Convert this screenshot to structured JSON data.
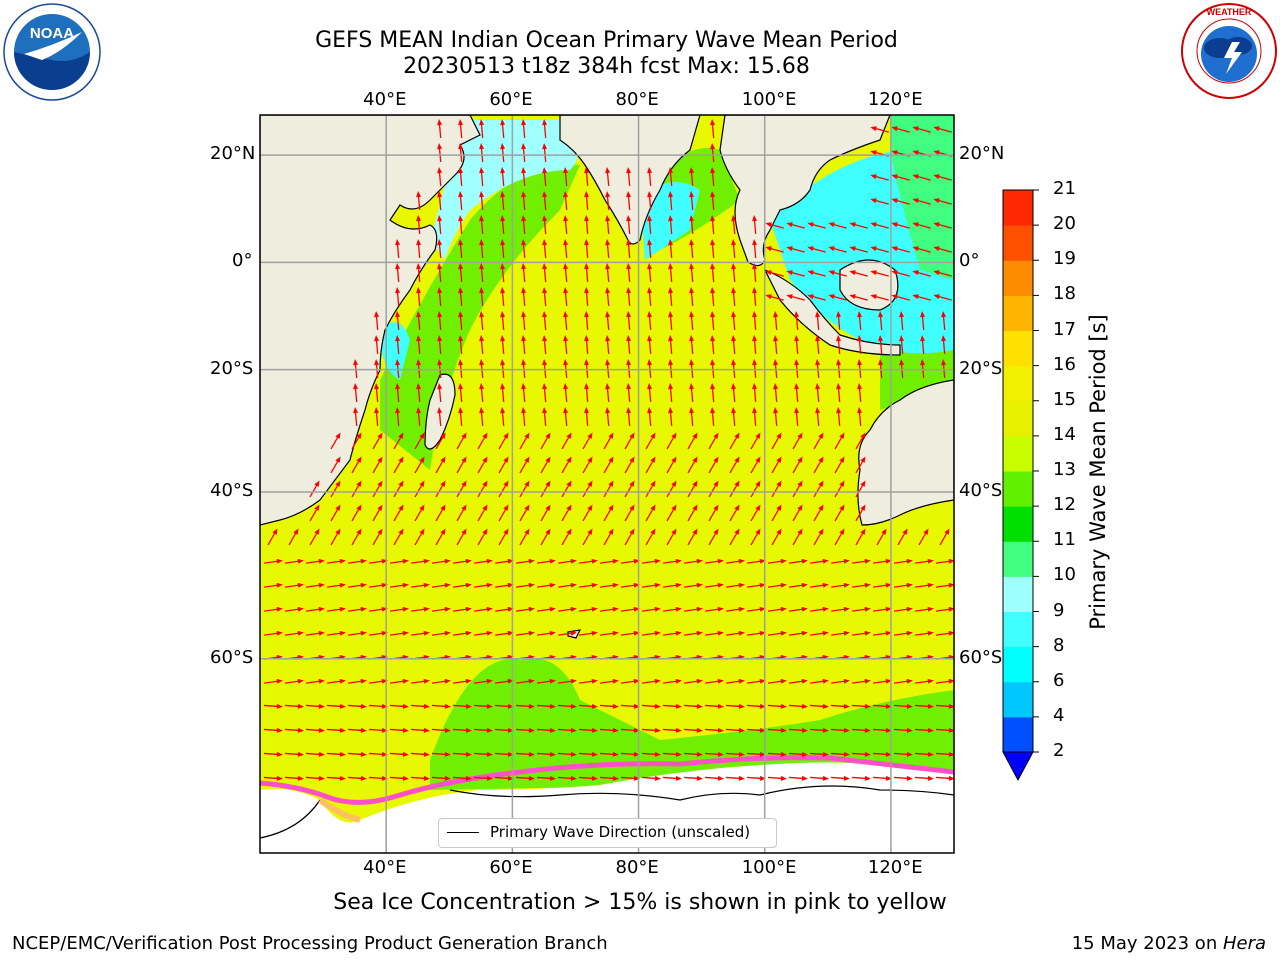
{
  "title": {
    "line1": "GEFS MEAN Indian Ocean Primary Wave Mean Period",
    "line2": "20230513 t18z 384h fcst   Max: 15.68"
  },
  "logos": {
    "noaa": {
      "text": "NOAA",
      "ring_text": "NATIONAL OCEANIC AND ATMOSPHERIC ADMINISTRATION · U.S. DEPARTMENT OF COMMERCE",
      "icon": "noaa-logo"
    },
    "nws": {
      "ring_text": "NATIONAL WEATHER SERVICE",
      "icon": "nws-logo"
    }
  },
  "axes": {
    "lon_ticks": [
      "40°E",
      "60°E",
      "80°E",
      "100°E",
      "120°E"
    ],
    "lat_ticks": [
      "20°N",
      "0°",
      "20°S",
      "40°S",
      "60°S"
    ],
    "lon_range": [
      20,
      130
    ],
    "lat_range": [
      -74,
      27
    ],
    "grid": true
  },
  "colorbar": {
    "label": "Primary Wave Mean Period [s]",
    "ticks": [
      "21",
      "20",
      "19",
      "18",
      "17",
      "16",
      "15",
      "14",
      "13",
      "12",
      "11",
      "10",
      "9",
      "8",
      "6",
      "4",
      "2"
    ],
    "levels": [
      2,
      4,
      6,
      8,
      9,
      10,
      11,
      12,
      13,
      14,
      15,
      16,
      17,
      18,
      19,
      20,
      21
    ],
    "colors": [
      "#0050ff",
      "#00c8ff",
      "#00ffff",
      "#40ffff",
      "#a0ffff",
      "#40ff80",
      "#00e000",
      "#60f000",
      "#c8ff00",
      "#e6f000",
      "#f0f000",
      "#ffe000",
      "#ffb400",
      "#ff8c00",
      "#ff5000",
      "#ff2800",
      "#ff0000"
    ],
    "extend_low_color": "#0000ff"
  },
  "legend": {
    "label": "Primary Wave Direction (unscaled)"
  },
  "caption": "Sea Ice Concentration > 15% is shown in pink to yellow",
  "footer": {
    "credit": "NCEP/EMC/Verification Post Processing Product Generation Branch",
    "date_prefix": "15 May 2023 on ",
    "machine": "Hera"
  },
  "colors": {
    "land": "#efedde",
    "ocean_main": "#e8f800",
    "ocean_green": "#70f000",
    "ocean_cyan": "#40ffff",
    "arrow": "#ff0000",
    "ice_edge": "#ff50c8"
  }
}
